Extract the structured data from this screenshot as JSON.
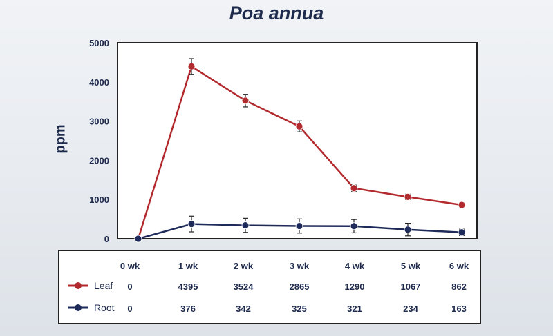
{
  "title": "Poa annua",
  "ylabel": "ppm",
  "colors": {
    "leaf": "#b22a2e",
    "root": "#1e2a5a"
  },
  "chart_data": {
    "type": "line",
    "title": "Poa annua",
    "xlabel": "",
    "ylabel": "ppm",
    "ylim": [
      0,
      5000
    ],
    "yticks": [
      0,
      1000,
      2000,
      3000,
      4000,
      5000
    ],
    "categories": [
      "0 wk",
      "1 wk",
      "2 wk",
      "3 wk",
      "4 wk",
      "5 wk",
      "6 wk"
    ],
    "series": [
      {
        "name": "Leaf",
        "values": [
          0,
          4395,
          3524,
          2865,
          1290,
          1067,
          862
        ],
        "error": [
          0,
          200,
          160,
          140,
          80,
          70,
          60
        ],
        "color": "#b22a2e"
      },
      {
        "name": "Root",
        "values": [
          0,
          376,
          342,
          325,
          321,
          234,
          163
        ],
        "error": [
          0,
          200,
          180,
          180,
          170,
          160,
          80
        ],
        "color": "#1e2a5a"
      }
    ],
    "legend": "bottom-table"
  },
  "table": {
    "headers": [
      "0 wk",
      "1 wk",
      "2 wk",
      "3 wk",
      "4 wk",
      "5 wk",
      "6 wk"
    ],
    "rows": [
      {
        "label": "Leaf",
        "values": [
          "0",
          "4395",
          "3524",
          "2865",
          "1290",
          "1067",
          "862"
        ]
      },
      {
        "label": "Root",
        "values": [
          "0",
          "376",
          "342",
          "325",
          "321",
          "234",
          "163"
        ]
      }
    ]
  }
}
